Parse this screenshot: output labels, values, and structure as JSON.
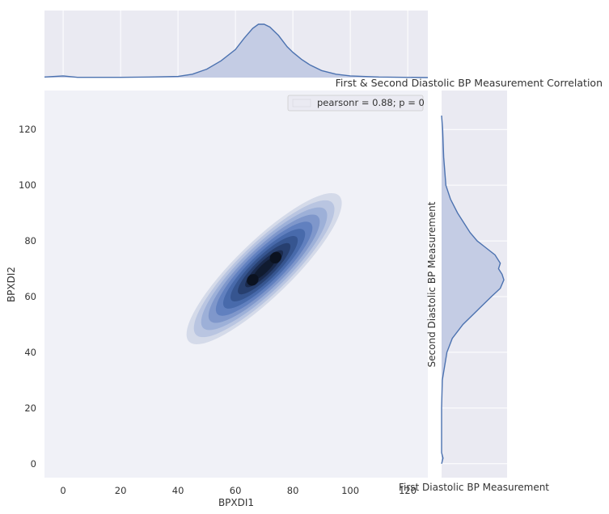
{
  "chart_data": {
    "type": "heatmap",
    "subtype": "joint-kde",
    "title": "First & Second Diastolic BP Measurement Correlation",
    "xlabel": "BPXDI1",
    "ylabel": "BPXDI2",
    "extra_x_label": "First Diastolic BP Measurement",
    "extra_y_label": "Second Diastolic BP Measurement",
    "xlim": [
      -6.5,
      127
    ],
    "ylim": [
      -5,
      134
    ],
    "x_ticks": [
      "0",
      "20",
      "40",
      "60",
      "80",
      "100",
      "120"
    ],
    "x_tick_values": [
      0,
      20,
      40,
      60,
      80,
      100,
      120
    ],
    "y_ticks": [
      "0",
      "20",
      "40",
      "60",
      "80",
      "100",
      "120"
    ],
    "y_tick_values": [
      0,
      20,
      40,
      60,
      80,
      100,
      120
    ],
    "legend": {
      "text": "pearsonr = 0.88; p = 0",
      "placement": "top-right"
    },
    "grid": true,
    "density": {
      "center_x": 70,
      "center_y": 70,
      "sd_x": 10,
      "sd_y": 10,
      "correlation": 0.88,
      "peaks": [
        {
          "x": 66,
          "y": 66
        },
        {
          "x": 74,
          "y": 74
        }
      ]
    },
    "marginal_x_kde": {
      "x": [
        -6.5,
        0,
        5,
        20,
        30,
        40,
        45,
        50,
        55,
        60,
        63,
        66,
        68,
        70,
        72,
        75,
        78,
        80,
        83,
        86,
        90,
        95,
        100,
        110,
        127
      ],
      "density": [
        0.002,
        0.006,
        0.001,
        0.001,
        0.002,
        0.004,
        0.012,
        0.03,
        0.06,
        0.1,
        0.14,
        0.175,
        0.19,
        0.19,
        0.18,
        0.15,
        0.11,
        0.09,
        0.065,
        0.045,
        0.025,
        0.012,
        0.006,
        0.002,
        0.0
      ]
    },
    "marginal_y_kde": {
      "y": [
        0,
        2,
        4,
        10,
        20,
        30,
        40,
        45,
        50,
        55,
        60,
        63,
        66,
        68,
        70,
        72,
        75,
        78,
        80,
        83,
        86,
        90,
        95,
        100,
        110,
        120,
        125
      ],
      "density": [
        0.0,
        0.004,
        0.0,
        0.0,
        0.0,
        0.002,
        0.015,
        0.03,
        0.06,
        0.1,
        0.14,
        0.165,
        0.175,
        0.17,
        0.16,
        0.165,
        0.15,
        0.12,
        0.1,
        0.08,
        0.065,
        0.045,
        0.025,
        0.012,
        0.006,
        0.003,
        0.0
      ]
    },
    "colors": {
      "panel_bg": "#eaeaf2",
      "joint_bg": "#f0f1f7",
      "line": "#4c72b0",
      "fill": "#c4cce4",
      "levels": [
        "#d4dae9",
        "#b9c5e1",
        "#9db0d8",
        "#7f97cb",
        "#6180bf",
        "#486aab",
        "#365590",
        "#273f6f",
        "#1a2a4d",
        "#101b30"
      ]
    }
  }
}
